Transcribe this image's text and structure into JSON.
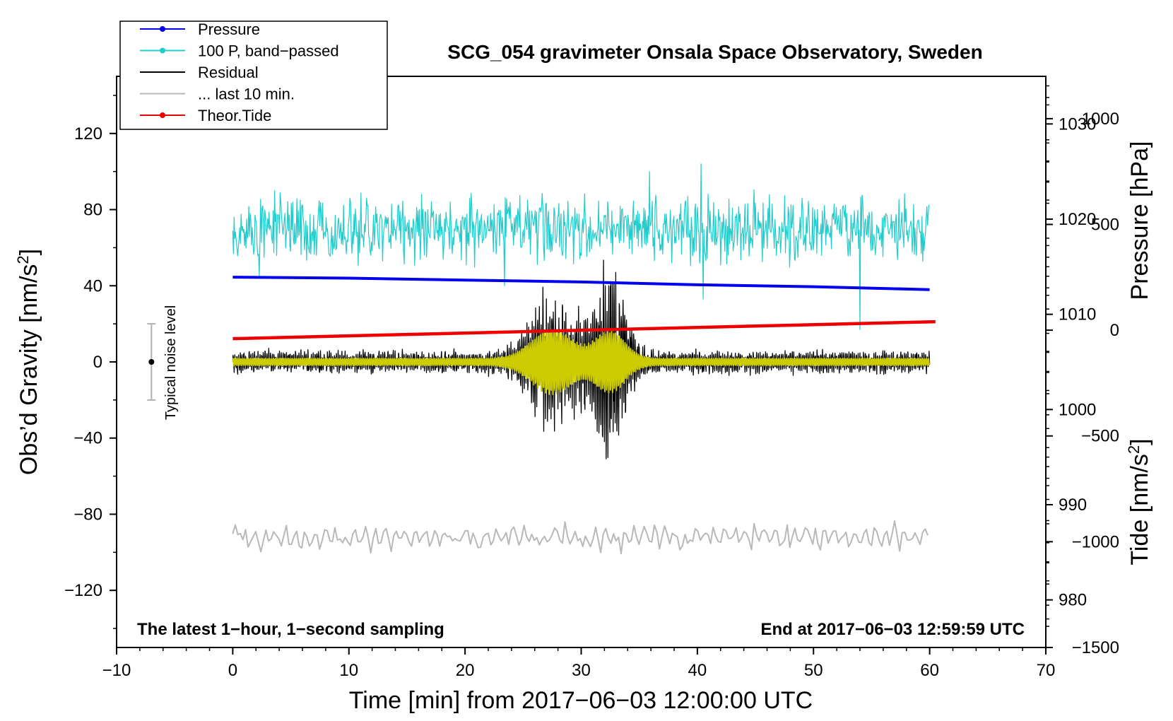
{
  "chart_data": {
    "type": "line",
    "title": "SCG_054 gravimeter Onsala Space Observatory, Sweden",
    "xlabel": "Time [min] from 2017−06−03 12:00:00 UTC",
    "ylabel_left_text": "Obs’d Gravity [nm/s",
    "ylabel_left_sup": "2",
    "ylabel_left_end": "]",
    "ylabel_right_top": "Pressure [hPa]",
    "ylabel_right_bottom_text": "Tide [nm/s",
    "ylabel_right_bottom_sup": "2",
    "ylabel_right_bottom_end": "]",
    "xlim": [
      -10,
      70
    ],
    "ylim_left": [
      -150,
      150
    ],
    "pressure_axis_range": [
      975,
      1035
    ],
    "tide_axis_range": [
      -1500,
      1200
    ],
    "x_ticks": [
      -10,
      0,
      10,
      20,
      30,
      40,
      50,
      60,
      70
    ],
    "x_tick_labels": [
      "−10",
      "0",
      "10",
      "20",
      "30",
      "40",
      "50",
      "60",
      "70"
    ],
    "y_left_ticks": [
      120,
      80,
      40,
      0,
      -40,
      -80,
      -120
    ],
    "y_left_tick_labels": [
      "120",
      "80",
      "40",
      "0",
      "−40",
      "−80",
      "−120"
    ],
    "y_pressure_ticks": [
      1030,
      1020,
      1010,
      1000,
      990,
      980
    ],
    "y_pressure_tick_labels": [
      "1030",
      "1020",
      "1010",
      "1000",
      "990",
      "980"
    ],
    "y_tide_ticks": [
      1000,
      500,
      0,
      -500,
      -1000,
      -1500
    ],
    "y_tide_tick_labels": [
      "1000",
      "500",
      "0",
      "−500",
      "−1000",
      "−1500"
    ],
    "annotation_left": "The latest 1−hour, 1−second sampling",
    "annotation_right": "End at 2017−06−03 12:59:59 UTC",
    "noise_level_label": "Typical noise level",
    "noise_level": {
      "x": -7,
      "center": 0,
      "half_range": 20
    },
    "legend": [
      {
        "label": "Pressure",
        "color": "#0000ee",
        "marker": true
      },
      {
        "label": "100 P, band−passed",
        "color": "#22cccc",
        "marker": true
      },
      {
        "label": "Residual",
        "color": "#000000",
        "marker": false
      },
      {
        "label": "... last 10 min.",
        "color": "#b8b8b8",
        "marker": false
      },
      {
        "label": "Theor.Tide",
        "color": "#ee0000",
        "marker": true
      }
    ],
    "series": [
      {
        "name": "Pressure",
        "color": "#0000ee",
        "axis": "pressure",
        "x_range": [
          0,
          60
        ],
        "points": [
          [
            0,
            1013.9
          ],
          [
            10,
            1013.8
          ],
          [
            20,
            1013.6
          ],
          [
            30,
            1013.4
          ],
          [
            40,
            1013.1
          ],
          [
            50,
            1012.9
          ],
          [
            60,
            1012.6
          ]
        ]
      },
      {
        "name": "100 P, band−passed",
        "color": "#22cccc",
        "axis": "left",
        "x_range": [
          0,
          60
        ],
        "baseline": 70,
        "typical_amplitude": 12,
        "spikes": [
          [
            2.3,
            45
          ],
          [
            12.9,
            53
          ],
          [
            23.4,
            40
          ],
          [
            35.9,
            100
          ],
          [
            40.3,
            104
          ],
          [
            40.5,
            33
          ],
          [
            54.0,
            17
          ]
        ]
      },
      {
        "name": "Residual",
        "color": "#000000",
        "axis": "left",
        "x_range": [
          0,
          60
        ],
        "baseline": 0,
        "typical_amplitude": 5,
        "bursts": [
          {
            "center": 27.5,
            "width": 2.5,
            "amplitude": 28
          },
          {
            "center": 32.5,
            "width": 1.8,
            "amplitude": 40
          }
        ]
      },
      {
        "name": "Residual (filtered)",
        "color": "#cccc00",
        "axis": "left",
        "x_range": [
          0,
          60
        ],
        "baseline": 0,
        "typical_amplitude": 2,
        "bursts": [
          {
            "center": 27.5,
            "width": 2.5,
            "amplitude": 16
          },
          {
            "center": 32.5,
            "width": 1.8,
            "amplitude": 15
          }
        ]
      },
      {
        "name": "Theor.Tide",
        "color": "#ee0000",
        "axis": "tide",
        "x_range": [
          0,
          60.5
        ],
        "points": [
          [
            0,
            -40
          ],
          [
            60.5,
            40
          ]
        ]
      },
      {
        "name": "... last 10 min.",
        "color": "#b8b8b8",
        "axis": "left",
        "x_range": [
          0,
          60
        ],
        "baseline": -92,
        "typical_amplitude": 6
      }
    ]
  }
}
